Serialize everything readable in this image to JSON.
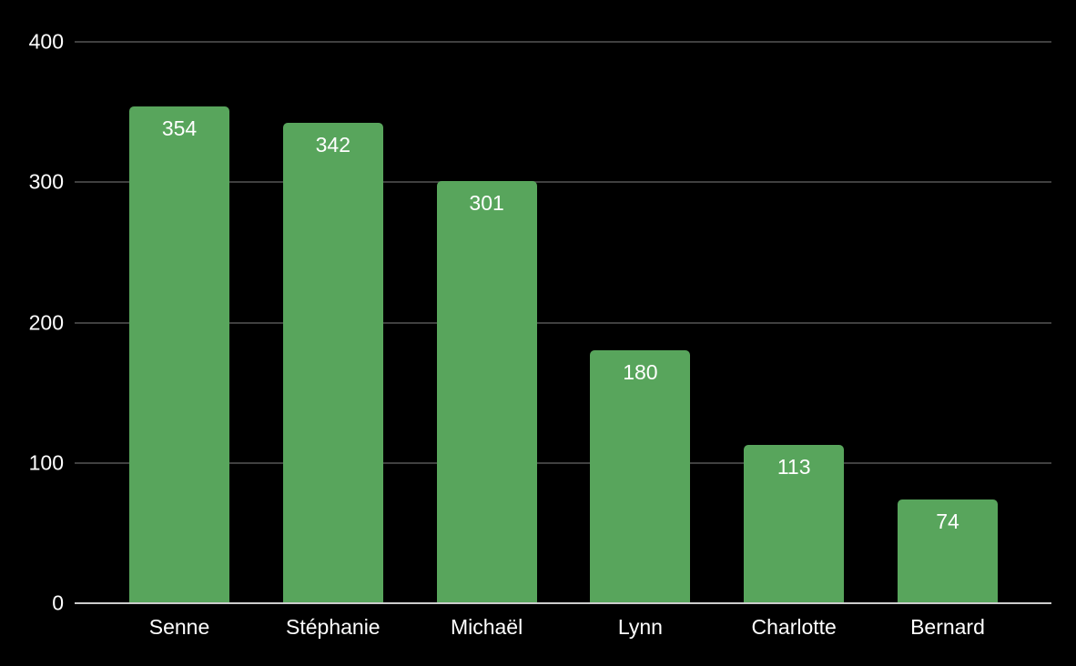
{
  "chart_data": {
    "type": "bar",
    "title": "",
    "xlabel": "",
    "ylabel": "",
    "categories": [
      "Senne",
      "Stéphanie",
      "Michaël",
      "Lynn",
      "Charlotte",
      "Bernard"
    ],
    "values": [
      354,
      342,
      301,
      180,
      113,
      74
    ],
    "ylim": [
      0,
      400
    ],
    "yticks": [
      "0",
      "100",
      "200",
      "300",
      "400"
    ],
    "grid": true,
    "legend": false,
    "colors": {
      "background": "#000000",
      "bar": "#58a55c",
      "gridline": "#404040",
      "axisline": "#cccccc",
      "text": "#ffffff"
    }
  }
}
